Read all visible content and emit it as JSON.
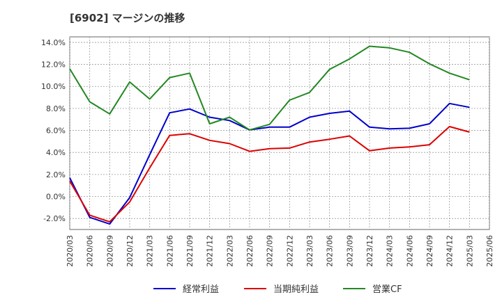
{
  "chart_data": {
    "type": "line",
    "title": "[6902]  マージンの推移",
    "xlabel": "",
    "ylabel": "",
    "ylim": [
      -3.0,
      14.5
    ],
    "y_ticks": [
      -2.0,
      0.0,
      2.0,
      4.0,
      6.0,
      8.0,
      10.0,
      12.0,
      14.0
    ],
    "y_tick_labels": [
      "-2.0%",
      "0.0%",
      "2.0%",
      "4.0%",
      "6.0%",
      "8.0%",
      "10.0%",
      "12.0%",
      "14.0%"
    ],
    "categories": [
      "2020/03",
      "2020/06",
      "2020/09",
      "2020/12",
      "2021/03",
      "2021/06",
      "2021/09",
      "2021/12",
      "2022/03",
      "2022/06",
      "2022/09",
      "2022/12",
      "2023/03",
      "2023/06",
      "2023/09",
      "2023/12",
      "2024/03",
      "2024/06",
      "2024/09",
      "2024/12",
      "2025/03",
      "2025/06"
    ],
    "grid": true,
    "legend_position": "bottom",
    "series": [
      {
        "name": "経常利益",
        "color": "#0000cc",
        "values": [
          1.7,
          -1.9,
          -2.5,
          -0.1,
          3.8,
          7.6,
          7.95,
          7.2,
          6.9,
          6.05,
          6.3,
          6.3,
          7.2,
          7.55,
          7.75,
          6.3,
          6.15,
          6.2,
          6.6,
          8.45,
          8.1,
          null
        ]
      },
      {
        "name": "当期純利益",
        "color": "#dd0000",
        "values": [
          1.4,
          -1.7,
          -2.3,
          -0.5,
          2.6,
          5.55,
          5.7,
          5.1,
          4.8,
          4.1,
          4.35,
          4.4,
          4.95,
          5.2,
          5.5,
          4.15,
          4.4,
          4.5,
          4.7,
          6.35,
          5.85,
          null
        ]
      },
      {
        "name": "営業CF",
        "color": "#228822",
        "values": [
          11.6,
          8.6,
          7.5,
          10.4,
          8.85,
          10.8,
          11.2,
          6.6,
          7.2,
          6.05,
          6.55,
          8.75,
          9.45,
          11.55,
          12.5,
          13.65,
          13.5,
          13.1,
          12.05,
          11.2,
          10.6,
          null
        ]
      }
    ]
  }
}
